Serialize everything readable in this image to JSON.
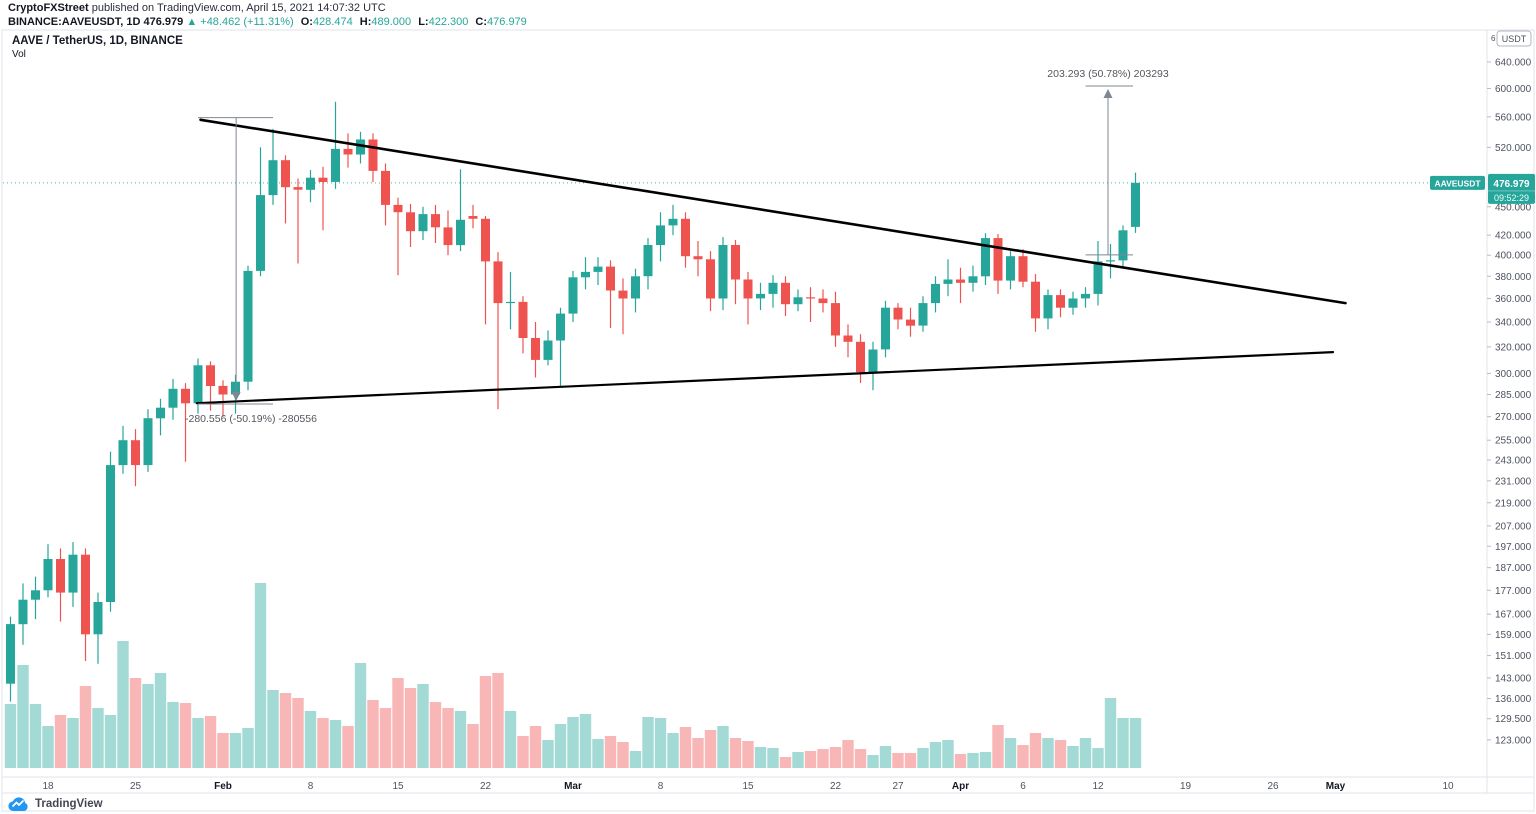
{
  "header": {
    "publisher": "CryptoFXStreet",
    "publisher_suffix": " published on TradingView.com, April 15, 2021 14:07:32 UTC",
    "symbol_line": {
      "symbol": "BINANCE:AAVEUSDT, 1D",
      "last": "476.979",
      "arrow": "▲",
      "change": "+48.462 (+11.31%)",
      "o_label": "O:",
      "o": "428.474",
      "h_label": "H:",
      "h": "489.000",
      "l_label": "L:",
      "l": "422.300",
      "c_label": "C:",
      "c": "476.979"
    }
  },
  "legend": {
    "title": "AAVE / TetherUS, 1D, BINANCE",
    "indicator": "Vol"
  },
  "price_axis": {
    "superscript": "6",
    "currency": "USDT",
    "ticks": [
      "640.000",
      "600.000",
      "560.000",
      "520.000",
      "450.000",
      "420.000",
      "400.000",
      "380.000",
      "360.000",
      "340.000",
      "320.000",
      "300.000",
      "285.000",
      "270.000",
      "255.000",
      "243.000",
      "231.000",
      "219.000",
      "207.000",
      "197.000",
      "187.000",
      "177.000",
      "167.000",
      "159.000",
      "151.000",
      "143.000",
      "136.000",
      "129.500",
      "123.000"
    ]
  },
  "time_axis": {
    "ticks": [
      {
        "label": "18",
        "day": 3
      },
      {
        "label": "25",
        "day": 10
      },
      {
        "label": "Feb",
        "day": 17,
        "major": true
      },
      {
        "label": "8",
        "day": 24
      },
      {
        "label": "15",
        "day": 31
      },
      {
        "label": "22",
        "day": 38
      },
      {
        "label": "Mar",
        "day": 45,
        "major": true
      },
      {
        "label": "8",
        "day": 52
      },
      {
        "label": "15",
        "day": 59
      },
      {
        "label": "22",
        "day": 66
      },
      {
        "label": "27",
        "day": 71
      },
      {
        "label": "Apr",
        "day": 76,
        "major": true
      },
      {
        "label": "6",
        "day": 81
      },
      {
        "label": "12",
        "day": 87
      },
      {
        "label": "19",
        "day": 94
      },
      {
        "label": "26",
        "day": 101
      },
      {
        "label": "May",
        "day": 106,
        "major": true
      },
      {
        "label": "10",
        "day": 115
      }
    ]
  },
  "footer": {
    "brand": "TradingView"
  },
  "colors": {
    "up": "#26a69a",
    "down": "#ef5350",
    "vol_up": "rgba(38,166,154,0.42)",
    "vol_down": "rgba(239,83,80,0.42)",
    "accent": "#26a69a",
    "axis_text": "#4c525e",
    "trend": "#000000",
    "measure": "#7e8792",
    "measure_text": "#53565c",
    "frame": "#e0e3eb",
    "text": "#131722",
    "logo_blue": "#2196f3"
  },
  "chart_data": {
    "type": "candlestick",
    "symbol": "BINANCE:AAVEUSDT",
    "interval": "1D",
    "title": "AAVE / TetherUS, 1D, BINANCE",
    "price_scale": "log",
    "yrange": [
      123,
      660
    ],
    "grid": false,
    "volume_units": "relative",
    "price_line": {
      "price": 476.979,
      "label": "476.979",
      "countdown": "09:52:29",
      "symbol_label": "AAVEUSDT"
    },
    "trendlines": [
      {
        "name": "descending-resistance",
        "from_day": 15.2,
        "from_price": 556,
        "to_day": 106.8,
        "to_price": 356,
        "width": 2.6
      },
      {
        "name": "ascending-support",
        "from_day": 14.9,
        "from_price": 279,
        "to_day": 105.8,
        "to_price": 316,
        "width": 2.2
      }
    ],
    "measurements": [
      {
        "name": "projection-up",
        "label": "203.293 (50.78%) 203293",
        "direction": "up",
        "from_day": 86,
        "to_day": 89.8,
        "arrow_day": 87.8,
        "from_price": 400.34,
        "to_price": 603.63
      },
      {
        "name": "measure-down",
        "label": "-280.556 (-50.19%) -280556",
        "direction": "down",
        "from_day": 15.0,
        "to_day": 21.0,
        "arrow_day": 18.05,
        "from_price": 559.05,
        "to_price": 278.49
      }
    ],
    "columns": [
      "date",
      "open",
      "high",
      "low",
      "close",
      "volume"
    ],
    "candles": [
      [
        "2021-01-15",
        141,
        166,
        135,
        163,
        64
      ],
      [
        "2021-01-16",
        163,
        180,
        155,
        173,
        103
      ],
      [
        "2021-01-17",
        173,
        183,
        165,
        177,
        64
      ],
      [
        "2021-01-18",
        177,
        198,
        174,
        191,
        42
      ],
      [
        "2021-01-19",
        191,
        196,
        164,
        176,
        53
      ],
      [
        "2021-01-20",
        176,
        199,
        170,
        193,
        50
      ],
      [
        "2021-01-21",
        193,
        196,
        149,
        159,
        82
      ],
      [
        "2021-01-22",
        159,
        176,
        148,
        172,
        60
      ],
      [
        "2021-01-23",
        172,
        248,
        168,
        240,
        53
      ],
      [
        "2021-01-24",
        240,
        264,
        235,
        255,
        127
      ],
      [
        "2021-01-25",
        255,
        262,
        228,
        240,
        90
      ],
      [
        "2021-01-26",
        240,
        275,
        236,
        269,
        84
      ],
      [
        "2021-01-27",
        269,
        282,
        258,
        276,
        95
      ],
      [
        "2021-01-28",
        276,
        296,
        268,
        289,
        66
      ],
      [
        "2021-01-29",
        289,
        293,
        242,
        279,
        65
      ],
      [
        "2021-01-30",
        279,
        311,
        272,
        306,
        50
      ],
      [
        "2021-01-31",
        306,
        309,
        274,
        291,
        52
      ],
      [
        "2021-02-01",
        291,
        295,
        270,
        285,
        35
      ],
      [
        "2021-02-02",
        285,
        299,
        272,
        294,
        35
      ],
      [
        "2021-02-03",
        294,
        390,
        288,
        385,
        40
      ],
      [
        "2021-02-04",
        385,
        520,
        380,
        463,
        185
      ],
      [
        "2021-02-05",
        463,
        544,
        452,
        504,
        78
      ],
      [
        "2021-02-06",
        504,
        510,
        432,
        472,
        75
      ],
      [
        "2021-02-07",
        472,
        482,
        392,
        469,
        70
      ],
      [
        "2021-02-08",
        469,
        492,
        455,
        483,
        57
      ],
      [
        "2021-02-09",
        483,
        496,
        425,
        478,
        50
      ],
      [
        "2021-02-10",
        478,
        581,
        470,
        518,
        48
      ],
      [
        "2021-02-11",
        518,
        538,
        495,
        511,
        42
      ],
      [
        "2021-02-12",
        511,
        540,
        500,
        530,
        105
      ],
      [
        "2021-02-13",
        530,
        538,
        478,
        491,
        68
      ],
      [
        "2021-02-14",
        491,
        500,
        430,
        452,
        60
      ],
      [
        "2021-02-15",
        452,
        460,
        381,
        444,
        90
      ],
      [
        "2021-02-16",
        444,
        453,
        408,
        424,
        80
      ],
      [
        "2021-02-17",
        424,
        450,
        415,
        442,
        84
      ],
      [
        "2021-02-18",
        442,
        452,
        412,
        428,
        66
      ],
      [
        "2021-02-19",
        428,
        446,
        400,
        410,
        60
      ],
      [
        "2021-02-20",
        410,
        493,
        404,
        436,
        57
      ],
      [
        "2021-02-21",
        440,
        452,
        427,
        437,
        44
      ],
      [
        "2021-02-22",
        437,
        440,
        338,
        394,
        92
      ],
      [
        "2021-02-23",
        394,
        403,
        275,
        356,
        95
      ],
      [
        "2021-02-24",
        356,
        384,
        334,
        357,
        57
      ],
      [
        "2021-02-25",
        357,
        362,
        315,
        327,
        32
      ],
      [
        "2021-02-26",
        327,
        340,
        297,
        310,
        42
      ],
      [
        "2021-02-27",
        310,
        333,
        306,
        325,
        28
      ],
      [
        "2021-02-28",
        325,
        352,
        291,
        347,
        44
      ],
      [
        "2021-03-01",
        347,
        385,
        340,
        379,
        51
      ],
      [
        "2021-03-02",
        379,
        398,
        368,
        384,
        54
      ],
      [
        "2021-03-03",
        384,
        398,
        372,
        389,
        29
      ],
      [
        "2021-03-04",
        389,
        395,
        335,
        367,
        32
      ],
      [
        "2021-03-05",
        367,
        378,
        330,
        360,
        26
      ],
      [
        "2021-03-06",
        360,
        387,
        348,
        380,
        17
      ],
      [
        "2021-03-07",
        380,
        417,
        368,
        410,
        51
      ],
      [
        "2021-03-08",
        410,
        444,
        394,
        430,
        50
      ],
      [
        "2021-03-09",
        430,
        452,
        420,
        437,
        35
      ],
      [
        "2021-03-10",
        437,
        444,
        388,
        399,
        41
      ],
      [
        "2021-03-11",
        399,
        414,
        380,
        396,
        30
      ],
      [
        "2021-03-12",
        396,
        404,
        349,
        360,
        38
      ],
      [
        "2021-03-13",
        360,
        418,
        350,
        410,
        42
      ],
      [
        "2021-03-14",
        410,
        415,
        355,
        377,
        30
      ],
      [
        "2021-03-15",
        377,
        384,
        338,
        360,
        27
      ],
      [
        "2021-03-16",
        360,
        374,
        350,
        364,
        21
      ],
      [
        "2021-03-17",
        364,
        381,
        352,
        374,
        20
      ],
      [
        "2021-03-18",
        374,
        380,
        345,
        355,
        11
      ],
      [
        "2021-03-19",
        355,
        368,
        349,
        361,
        16
      ],
      [
        "2021-03-20",
        361,
        370,
        340,
        360,
        17
      ],
      [
        "2021-03-21",
        360,
        368,
        348,
        356,
        19
      ],
      [
        "2021-03-22",
        356,
        366,
        320,
        329,
        21
      ],
      [
        "2021-03-23",
        329,
        338,
        312,
        324,
        28
      ],
      [
        "2021-03-24",
        324,
        330,
        293,
        301,
        19
      ],
      [
        "2021-03-25",
        301,
        324,
        288,
        318,
        13
      ],
      [
        "2021-03-26",
        318,
        358,
        312,
        352,
        22
      ],
      [
        "2021-03-27",
        352,
        356,
        334,
        342,
        15
      ],
      [
        "2021-03-28",
        342,
        352,
        328,
        337,
        15
      ],
      [
        "2021-03-29",
        337,
        362,
        332,
        356,
        20
      ],
      [
        "2021-03-30",
        356,
        380,
        348,
        373,
        26
      ],
      [
        "2021-03-31",
        373,
        396,
        362,
        377,
        28
      ],
      [
        "2021-04-01",
        377,
        388,
        356,
        374,
        14
      ],
      [
        "2021-04-02",
        374,
        390,
        366,
        380,
        15
      ],
      [
        "2021-04-03",
        380,
        422,
        372,
        417,
        16
      ],
      [
        "2021-04-04",
        417,
        421,
        364,
        376,
        43
      ],
      [
        "2021-04-05",
        376,
        404,
        368,
        399,
        30
      ],
      [
        "2021-04-06",
        399,
        406,
        370,
        375,
        23
      ],
      [
        "2021-04-07",
        375,
        382,
        332,
        343,
        35
      ],
      [
        "2021-04-08",
        343,
        368,
        334,
        363,
        30
      ],
      [
        "2021-04-09",
        363,
        368,
        344,
        352,
        28
      ],
      [
        "2021-04-10",
        352,
        366,
        346,
        360,
        22
      ],
      [
        "2021-04-11",
        360,
        370,
        352,
        364,
        30
      ],
      [
        "2021-04-12",
        364,
        414,
        354,
        394,
        20
      ],
      [
        "2021-04-13",
        394,
        411,
        378,
        395,
        70
      ],
      [
        "2021-04-14",
        395,
        430,
        388,
        425,
        50
      ],
      [
        "2021-04-15",
        428.474,
        489.0,
        422.3,
        476.979,
        50
      ]
    ]
  }
}
